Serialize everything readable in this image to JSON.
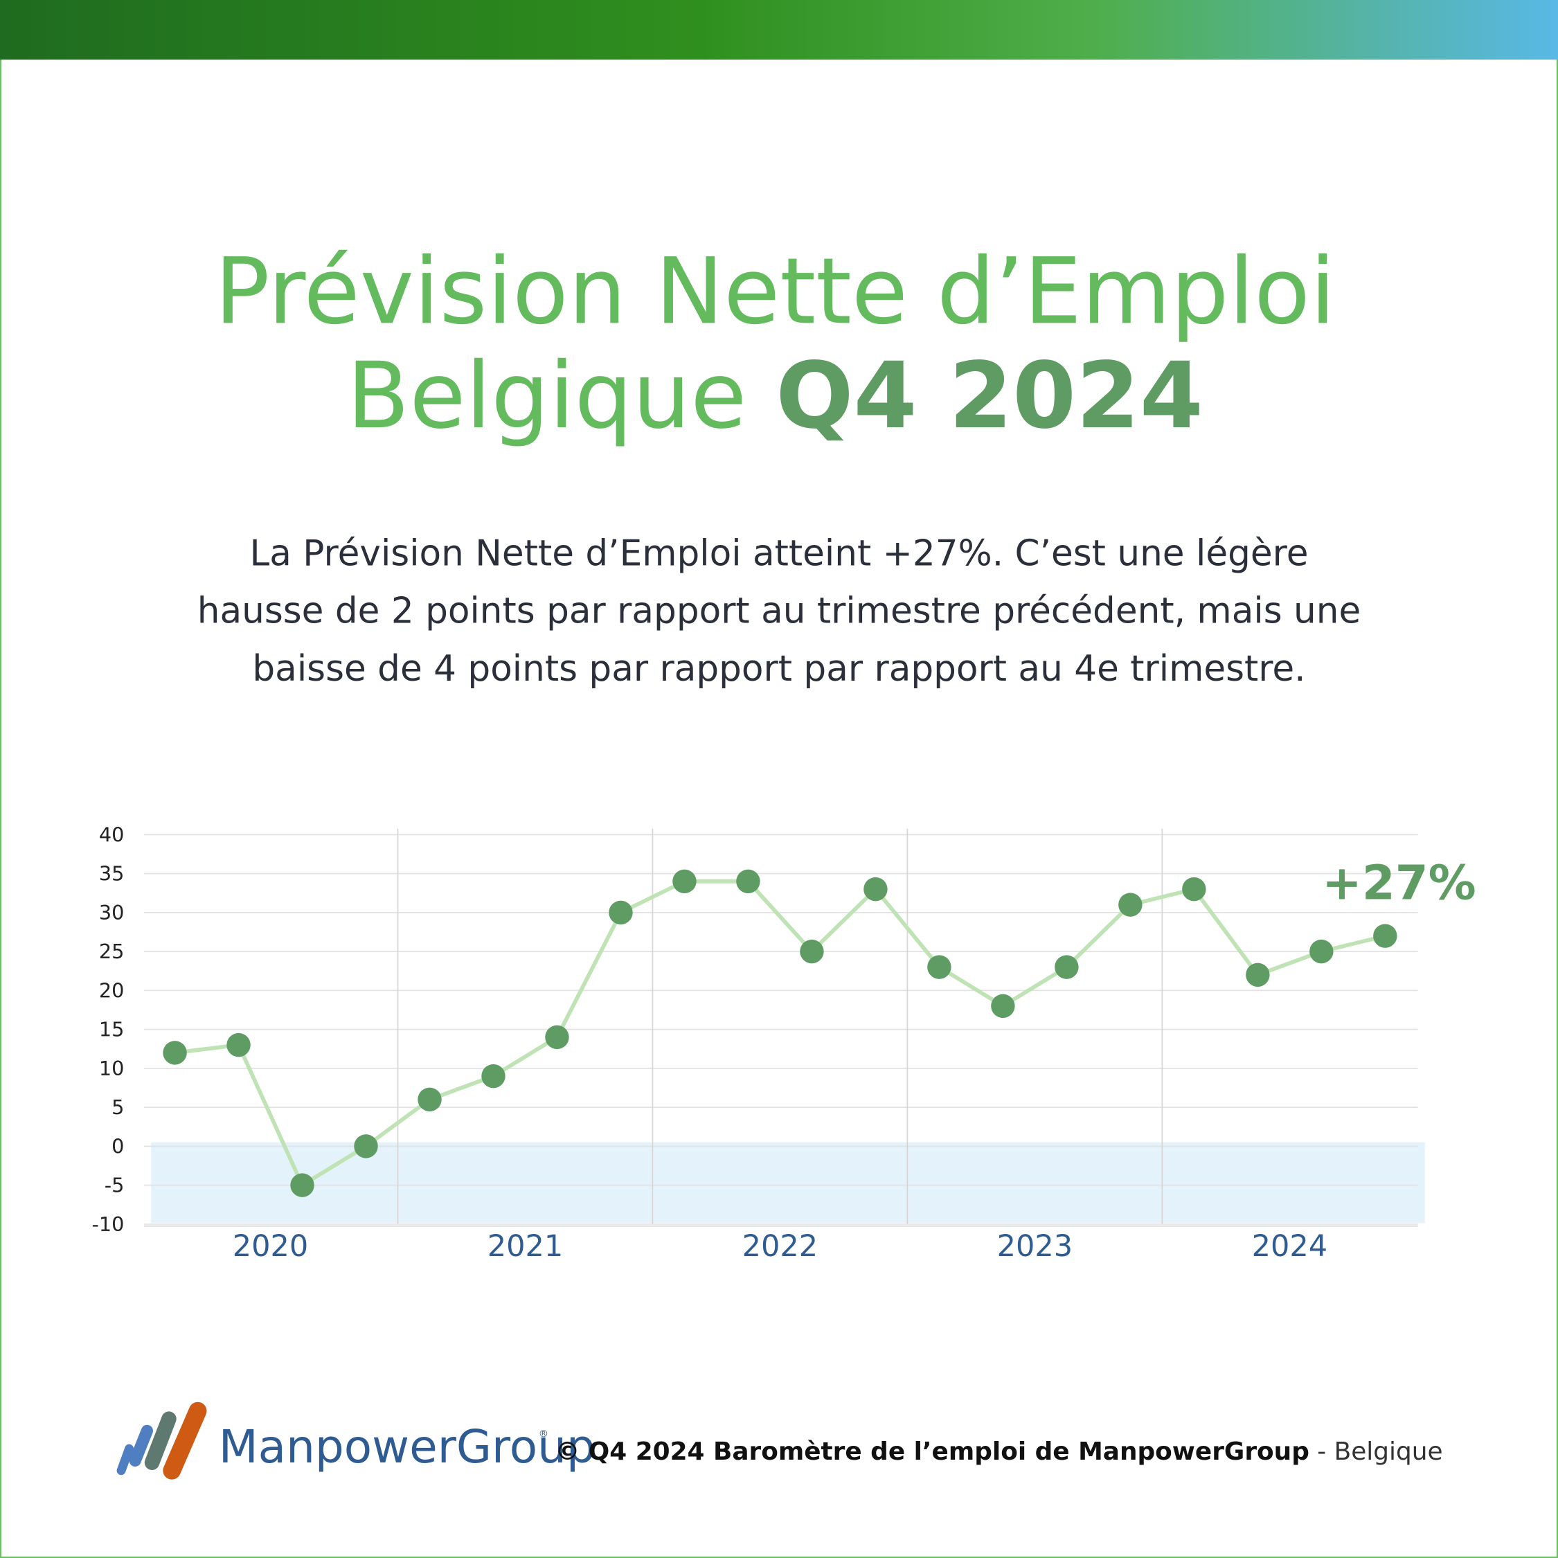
{
  "header": {
    "title_line1": "Prévision Nette d’Emploi",
    "title_line2_a": "Belgique",
    "title_line2_b": "Q4 2024"
  },
  "body": [
    "La Prévision Nette d’Emploi atteint +27%. C’est une légère",
    "hausse de 2 points par rapport au trimestre précédent, mais une",
    "baisse de 4 points par rapport par rapport au 4e trimestre."
  ],
  "chart_data": {
    "type": "line",
    "categories": [
      null,
      null,
      null,
      null,
      null,
      null,
      null,
      null,
      null,
      null,
      null,
      null,
      null,
      null,
      null,
      null,
      null,
      null,
      null,
      null
    ],
    "year_labels": [
      "2020",
      "2021",
      "2022",
      "2023",
      "2024"
    ],
    "series": [
      {
        "name": "Prévision Nette d’Emploi",
        "line_color": "#bfe3b5",
        "color": "#5f9c64",
        "values": [
          12,
          13,
          -5,
          0,
          6,
          9,
          14,
          30,
          34,
          34,
          25,
          33,
          23,
          18,
          23,
          31,
          33,
          22,
          25,
          27
        ],
        "value_labels": [
          null,
          null,
          null,
          null,
          null,
          null,
          null,
          null,
          null,
          null,
          null,
          null,
          null,
          null,
          null,
          null,
          null,
          null,
          null,
          "+27%"
        ]
      }
    ],
    "ylim": [
      -10,
      40
    ],
    "yticks": [
      -10,
      -5,
      0,
      5,
      10,
      15,
      20,
      25,
      30,
      35,
      40
    ],
    "grid": true,
    "negative_band_color": "#e4f3fb"
  },
  "footer": {
    "logo": "ManpowerGroup",
    "logo_mark": "®",
    "source_bold": "© Q4 2024 Baromètre de l’emploi de ManpowerGroup",
    "source_rest": " - Belgique"
  }
}
